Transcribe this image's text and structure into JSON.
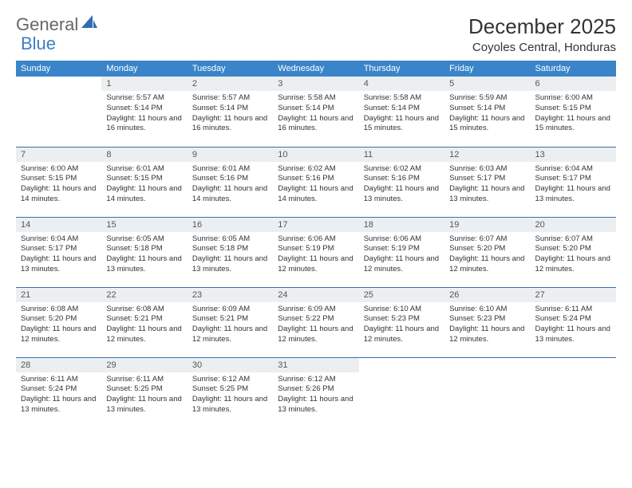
{
  "logo": {
    "text1": "General",
    "text2": "Blue"
  },
  "title": "December 2025",
  "location": "Coyoles Central, Honduras",
  "header_bg": "#3a85c9",
  "daynum_bg": "#eceff1",
  "row_border": "#3a6fa8",
  "days": [
    "Sunday",
    "Monday",
    "Tuesday",
    "Wednesday",
    "Thursday",
    "Friday",
    "Saturday"
  ],
  "weeks": [
    [
      null,
      {
        "n": "1",
        "sr": "5:57 AM",
        "ss": "5:14 PM",
        "dl": "11 hours and 16 minutes."
      },
      {
        "n": "2",
        "sr": "5:57 AM",
        "ss": "5:14 PM",
        "dl": "11 hours and 16 minutes."
      },
      {
        "n": "3",
        "sr": "5:58 AM",
        "ss": "5:14 PM",
        "dl": "11 hours and 16 minutes."
      },
      {
        "n": "4",
        "sr": "5:58 AM",
        "ss": "5:14 PM",
        "dl": "11 hours and 15 minutes."
      },
      {
        "n": "5",
        "sr": "5:59 AM",
        "ss": "5:14 PM",
        "dl": "11 hours and 15 minutes."
      },
      {
        "n": "6",
        "sr": "6:00 AM",
        "ss": "5:15 PM",
        "dl": "11 hours and 15 minutes."
      }
    ],
    [
      {
        "n": "7",
        "sr": "6:00 AM",
        "ss": "5:15 PM",
        "dl": "11 hours and 14 minutes."
      },
      {
        "n": "8",
        "sr": "6:01 AM",
        "ss": "5:15 PM",
        "dl": "11 hours and 14 minutes."
      },
      {
        "n": "9",
        "sr": "6:01 AM",
        "ss": "5:16 PM",
        "dl": "11 hours and 14 minutes."
      },
      {
        "n": "10",
        "sr": "6:02 AM",
        "ss": "5:16 PM",
        "dl": "11 hours and 14 minutes."
      },
      {
        "n": "11",
        "sr": "6:02 AM",
        "ss": "5:16 PM",
        "dl": "11 hours and 13 minutes."
      },
      {
        "n": "12",
        "sr": "6:03 AM",
        "ss": "5:17 PM",
        "dl": "11 hours and 13 minutes."
      },
      {
        "n": "13",
        "sr": "6:04 AM",
        "ss": "5:17 PM",
        "dl": "11 hours and 13 minutes."
      }
    ],
    [
      {
        "n": "14",
        "sr": "6:04 AM",
        "ss": "5:17 PM",
        "dl": "11 hours and 13 minutes."
      },
      {
        "n": "15",
        "sr": "6:05 AM",
        "ss": "5:18 PM",
        "dl": "11 hours and 13 minutes."
      },
      {
        "n": "16",
        "sr": "6:05 AM",
        "ss": "5:18 PM",
        "dl": "11 hours and 13 minutes."
      },
      {
        "n": "17",
        "sr": "6:06 AM",
        "ss": "5:19 PM",
        "dl": "11 hours and 12 minutes."
      },
      {
        "n": "18",
        "sr": "6:06 AM",
        "ss": "5:19 PM",
        "dl": "11 hours and 12 minutes."
      },
      {
        "n": "19",
        "sr": "6:07 AM",
        "ss": "5:20 PM",
        "dl": "11 hours and 12 minutes."
      },
      {
        "n": "20",
        "sr": "6:07 AM",
        "ss": "5:20 PM",
        "dl": "11 hours and 12 minutes."
      }
    ],
    [
      {
        "n": "21",
        "sr": "6:08 AM",
        "ss": "5:20 PM",
        "dl": "11 hours and 12 minutes."
      },
      {
        "n": "22",
        "sr": "6:08 AM",
        "ss": "5:21 PM",
        "dl": "11 hours and 12 minutes."
      },
      {
        "n": "23",
        "sr": "6:09 AM",
        "ss": "5:21 PM",
        "dl": "11 hours and 12 minutes."
      },
      {
        "n": "24",
        "sr": "6:09 AM",
        "ss": "5:22 PM",
        "dl": "11 hours and 12 minutes."
      },
      {
        "n": "25",
        "sr": "6:10 AM",
        "ss": "5:23 PM",
        "dl": "11 hours and 12 minutes."
      },
      {
        "n": "26",
        "sr": "6:10 AM",
        "ss": "5:23 PM",
        "dl": "11 hours and 12 minutes."
      },
      {
        "n": "27",
        "sr": "6:11 AM",
        "ss": "5:24 PM",
        "dl": "11 hours and 13 minutes."
      }
    ],
    [
      {
        "n": "28",
        "sr": "6:11 AM",
        "ss": "5:24 PM",
        "dl": "11 hours and 13 minutes."
      },
      {
        "n": "29",
        "sr": "6:11 AM",
        "ss": "5:25 PM",
        "dl": "11 hours and 13 minutes."
      },
      {
        "n": "30",
        "sr": "6:12 AM",
        "ss": "5:25 PM",
        "dl": "11 hours and 13 minutes."
      },
      {
        "n": "31",
        "sr": "6:12 AM",
        "ss": "5:26 PM",
        "dl": "11 hours and 13 minutes."
      },
      null,
      null,
      null
    ]
  ],
  "labels": {
    "sunrise": "Sunrise:",
    "sunset": "Sunset:",
    "daylight": "Daylight:"
  }
}
